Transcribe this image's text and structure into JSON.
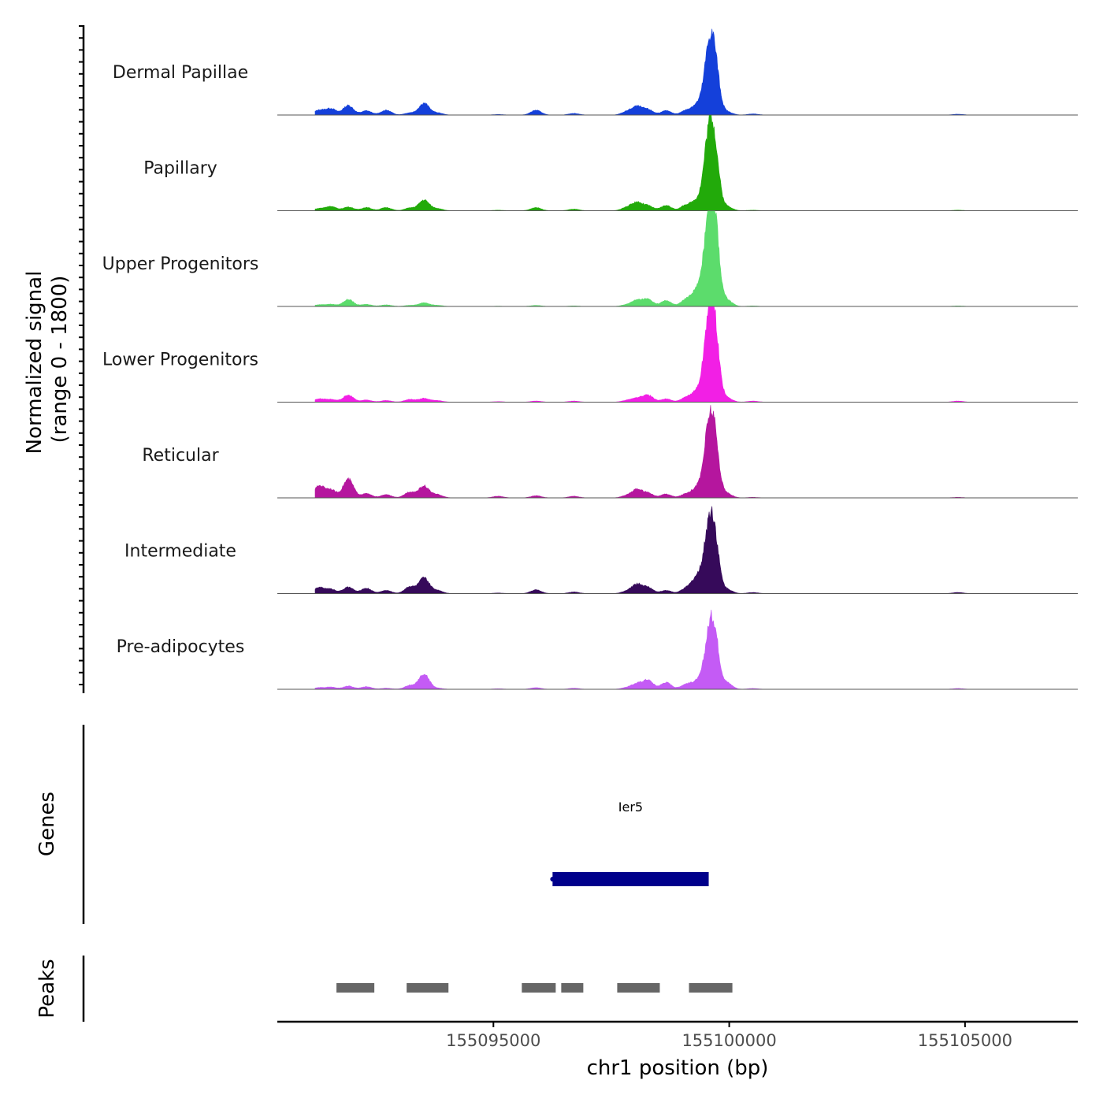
{
  "chart_data": {
    "type": "area",
    "title": "",
    "ylabel": "Normalized signal",
    "ylabel_range": "(range 0 - 1800)",
    "ylim": [
      0,
      1800
    ],
    "xlabel": "chr1 position (bp)",
    "xlim": [
      155090418,
      155107391
    ],
    "x_ticks": [
      155095000,
      155100000,
      155105000
    ],
    "x_tick_labels": [
      "155095000",
      "155100000",
      "155105000"
    ],
    "signal_start": 155091220,
    "signal_end": 155107000,
    "peak_sigma_bp": 110,
    "peak_positions": [
      155091304,
      155091555,
      155091923,
      155092308,
      155092726,
      155093227,
      155093528,
      155093813,
      155095100,
      155095903,
      155096706,
      155097826,
      155098043,
      155098278,
      155098662,
      155099080,
      155099314,
      155099549,
      155099682,
      155099950,
      155100502,
      155104850
    ],
    "series": [
      {
        "name": "Dermal Papillae",
        "color": "#1440DA",
        "heights": [
          90,
          120,
          180,
          80,
          90,
          40,
          220,
          40,
          10,
          90,
          30,
          60,
          150,
          100,
          80,
          80,
          180,
          900,
          1040,
          60,
          20,
          15
        ]
      },
      {
        "name": "Papillary",
        "color": "#22AA0A",
        "heights": [
          40,
          80,
          70,
          60,
          60,
          50,
          200,
          40,
          10,
          60,
          30,
          60,
          150,
          90,
          100,
          100,
          180,
          1100,
          1130,
          80,
          10,
          10
        ]
      },
      {
        "name": "Upper Progenitors",
        "color": "#5CDC6C",
        "heights": [
          30,
          40,
          130,
          40,
          30,
          20,
          70,
          20,
          5,
          20,
          10,
          30,
          110,
          130,
          110,
          120,
          300,
          1300,
          1600,
          120,
          10,
          10
        ]
      },
      {
        "name": "Lower Progenitors",
        "color": "#F21FE5",
        "heights": [
          60,
          50,
          130,
          40,
          30,
          50,
          70,
          30,
          10,
          20,
          20,
          30,
          70,
          130,
          60,
          80,
          200,
          1200,
          1350,
          80,
          20,
          20
        ]
      },
      {
        "name": "Reticular",
        "color": "#B5169E",
        "heights": [
          220,
          150,
          350,
          80,
          60,
          110,
          220,
          60,
          30,
          40,
          30,
          40,
          150,
          90,
          70,
          70,
          180,
          1000,
          1060,
          80,
          10,
          10
        ]
      },
      {
        "name": "Intermediate",
        "color": "#360A5A",
        "heights": [
          110,
          80,
          120,
          100,
          60,
          130,
          290,
          60,
          10,
          70,
          30,
          40,
          170,
          110,
          60,
          90,
          300,
          950,
          1010,
          80,
          20,
          20
        ]
      },
      {
        "name": "Pre-adipocytes",
        "color": "#C45BF5",
        "heights": [
          30,
          40,
          60,
          50,
          20,
          70,
          280,
          20,
          10,
          30,
          20,
          30,
          100,
          170,
          130,
          90,
          140,
          700,
          1010,
          120,
          15,
          15
        ]
      }
    ],
    "genes_track": {
      "label": "Genes",
      "genes": [
        {
          "name": "Ier5",
          "start": 155096254,
          "end": 155099565,
          "color": "#00008B"
        }
      ]
    },
    "peaks_track": {
      "label": "Peaks",
      "color": "#666666",
      "peaks": [
        [
          155091672,
          155092475
        ],
        [
          155093160,
          155094047
        ],
        [
          155095602,
          155096321
        ],
        [
          155096438,
          155096906
        ],
        [
          155097625,
          155098528
        ],
        [
          155099147,
          155100067
        ]
      ]
    }
  }
}
